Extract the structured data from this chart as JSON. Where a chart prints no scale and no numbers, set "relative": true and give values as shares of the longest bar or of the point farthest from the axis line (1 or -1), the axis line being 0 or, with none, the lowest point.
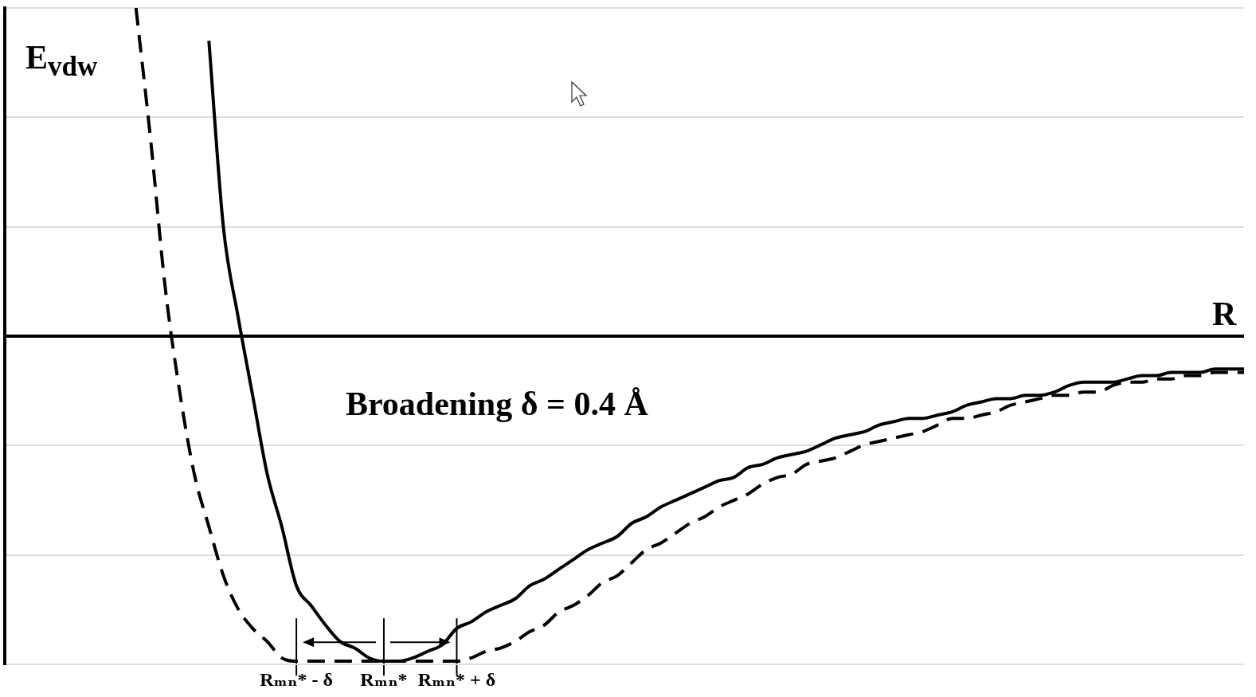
{
  "chart_data": {
    "type": "line",
    "relative": true,
    "xlabel": "R",
    "ylabel": "E$_{vdw}$",
    "annotations": [
      "Broadening δ = 0.4 Å"
    ],
    "grid": "y",
    "legend": false,
    "marker": "none",
    "categories": [
      null,
      null,
      null,
      null,
      null,
      null,
      null,
      null,
      null,
      null,
      null,
      null,
      null,
      null,
      null,
      null,
      null,
      null,
      null,
      null,
      "Rₘₙ* - δ",
      null,
      null,
      null,
      null,
      null,
      "Rₘₙ*",
      null,
      null,
      null,
      null,
      "Rₘₙ* + δ",
      null,
      null,
      null,
      null,
      null,
      null,
      null,
      null,
      null,
      null,
      null,
      null,
      null,
      null,
      null,
      null,
      null,
      null,
      null,
      null,
      null,
      null,
      null,
      null,
      null,
      null,
      null,
      null,
      null,
      null,
      null,
      null,
      null,
      null,
      null,
      null,
      null,
      null,
      null,
      null,
      null,
      null,
      null,
      null,
      null,
      null,
      null,
      null,
      null,
      null,
      null,
      null,
      null,
      null
    ],
    "series": [
      {
        "color": "#000000",
        "line_style": "solid",
        "values": [
          null,
          null,
          null,
          null,
          null,
          null,
          null,
          null,
          null,
          null,
          null,
          null,
          null,
          null,
          0.9,
          0.33,
          0.06,
          -0.18,
          -0.42,
          -0.58,
          -0.76,
          -0.82,
          -0.88,
          -0.93,
          -0.95,
          -0.98,
          -0.99,
          -0.99,
          -0.98,
          -0.96,
          -0.94,
          -0.89,
          -0.87,
          -0.84,
          -0.82,
          -0.8,
          -0.76,
          -0.74,
          -0.71,
          -0.68,
          -0.65,
          -0.63,
          -0.61,
          -0.57,
          -0.55,
          -0.52,
          -0.5,
          -0.48,
          -0.46,
          -0.44,
          -0.43,
          -0.4,
          -0.39,
          -0.37,
          -0.36,
          -0.35,
          -0.33,
          -0.31,
          -0.3,
          -0.29,
          -0.27,
          -0.26,
          -0.25,
          -0.25,
          -0.24,
          -0.23,
          -0.21,
          -0.2,
          -0.19,
          -0.19,
          -0.18,
          -0.18,
          -0.17,
          -0.15,
          -0.14,
          -0.14,
          -0.14,
          -0.13,
          -0.12,
          -0.12,
          -0.11,
          -0.11,
          -0.11,
          -0.1,
          -0.1,
          -0.1
        ]
      },
      {
        "color": "#000000",
        "line_style": "dashed",
        "values": [
          null,
          null,
          null,
          null,
          null,
          null,
          null,
          null,
          null,
          1.0,
          0.6,
          0.15,
          -0.17,
          -0.42,
          -0.58,
          -0.73,
          -0.83,
          -0.89,
          -0.93,
          -0.98,
          -0.99,
          -0.99,
          -0.99,
          -0.99,
          -0.99,
          -0.99,
          -0.99,
          -0.99,
          -0.99,
          -0.99,
          -0.99,
          -0.99,
          -0.98,
          -0.96,
          -0.95,
          -0.93,
          -0.9,
          -0.88,
          -0.84,
          -0.82,
          -0.79,
          -0.75,
          -0.73,
          -0.69,
          -0.65,
          -0.63,
          -0.6,
          -0.57,
          -0.55,
          -0.52,
          -0.5,
          -0.48,
          -0.45,
          -0.43,
          -0.42,
          -0.39,
          -0.38,
          -0.37,
          -0.35,
          -0.33,
          -0.32,
          -0.31,
          -0.3,
          -0.29,
          -0.27,
          -0.25,
          -0.25,
          -0.24,
          -0.23,
          -0.21,
          -0.2,
          -0.19,
          -0.18,
          -0.18,
          -0.17,
          -0.17,
          -0.15,
          -0.14,
          -0.14,
          -0.13,
          -0.13,
          -0.12,
          -0.12,
          -0.11,
          -0.11,
          -0.11
        ]
      }
    ]
  }
}
